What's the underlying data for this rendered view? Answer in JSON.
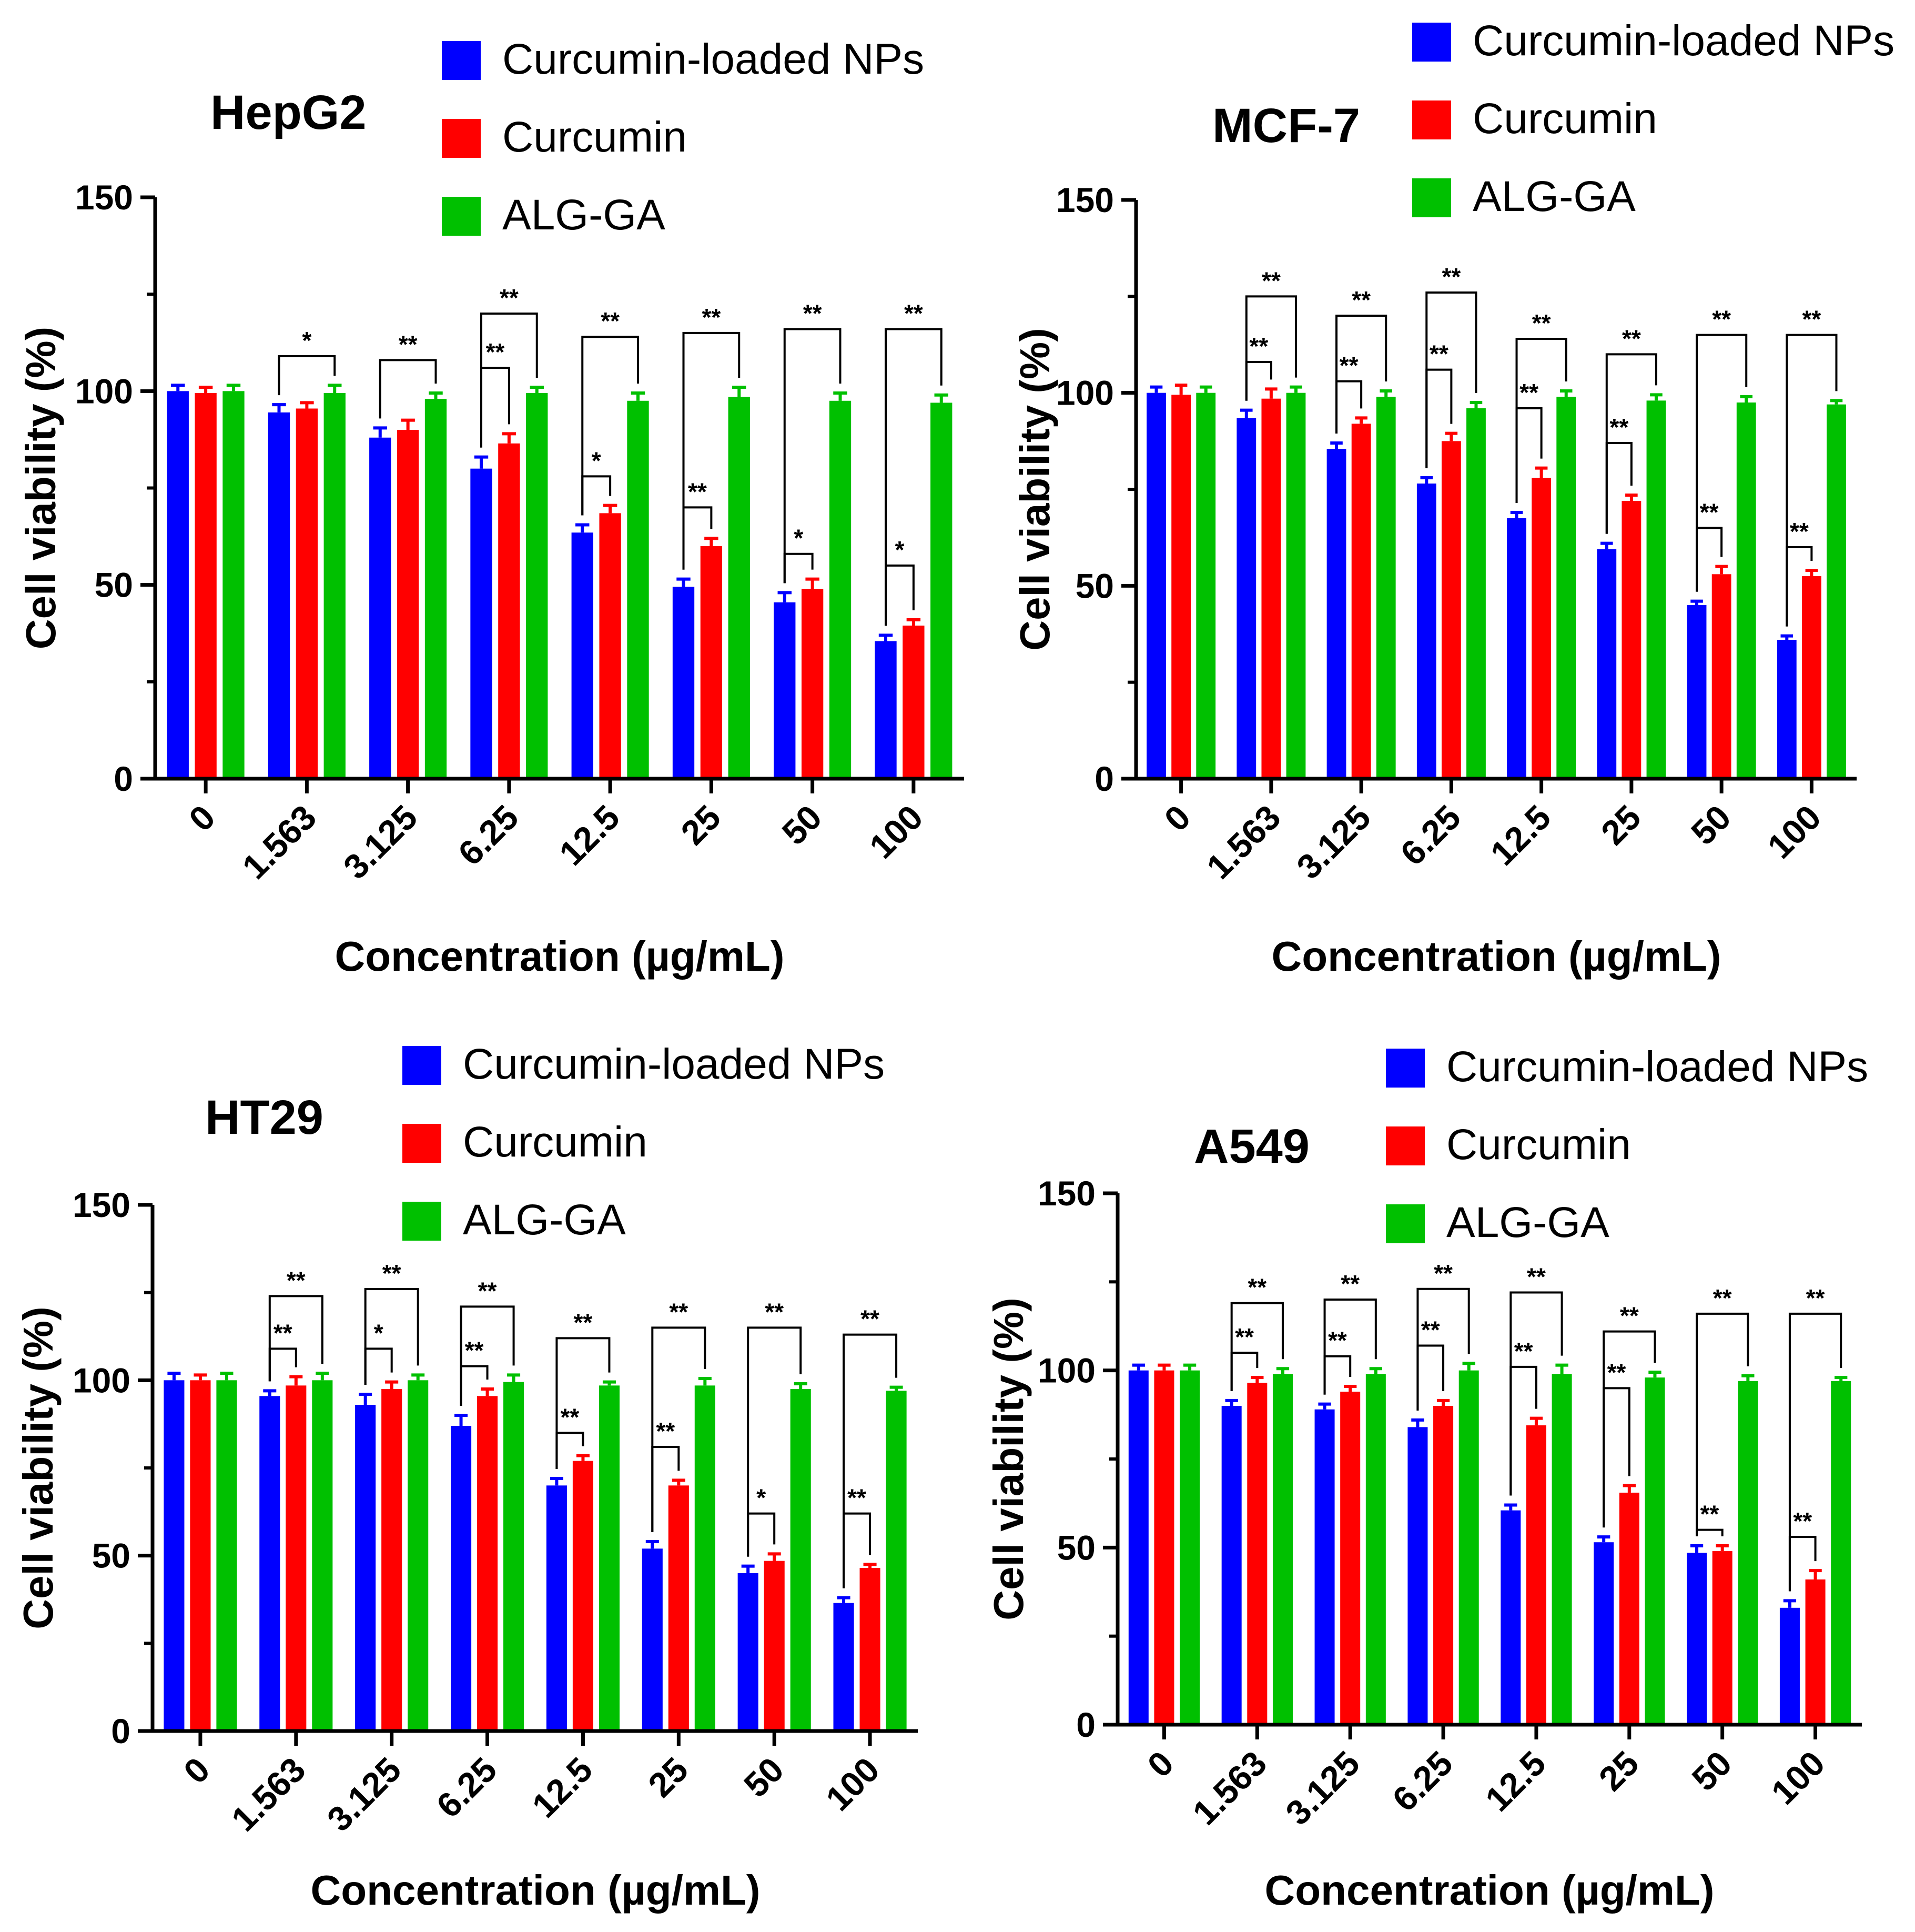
{
  "colors": {
    "nps": "#0000FF",
    "curcumin": "#FF0000",
    "alg": "#00C000",
    "axis": "#000000"
  },
  "chart_data": [
    {
      "type": "bar",
      "title": "HepG2",
      "xlabel": "Concentration (µg/mL)",
      "ylabel": "Cell viability (%)",
      "ylim": [
        0,
        150
      ],
      "yticks": [
        "0",
        "50",
        "100",
        "150"
      ],
      "categories": [
        "0",
        "1.563",
        "3.125",
        "6.25",
        "12.5",
        "25",
        "50",
        "100"
      ],
      "legend": [
        "Curcumin-loaded NPs",
        "Curcumin",
        "ALG-GA"
      ],
      "series": [
        {
          "name": "Curcumin-loaded NPs",
          "values": [
            100,
            94.5,
            88,
            80,
            63.5,
            49.5,
            45.5,
            35.5
          ],
          "errors": [
            1.5,
            2,
            2.5,
            3,
            2,
            2,
            2.5,
            1.5
          ]
        },
        {
          "name": "Curcumin",
          "values": [
            99.5,
            95.5,
            90,
            86.5,
            68.5,
            60,
            49,
            39.5
          ],
          "errors": [
            1.5,
            1.5,
            2.5,
            2.5,
            2,
            2,
            2.5,
            1.5
          ]
        },
        {
          "name": "ALG-GA",
          "values": [
            100,
            99.5,
            98,
            99.5,
            97.5,
            98.5,
            97.5,
            97
          ],
          "errors": [
            1.5,
            2,
            1.5,
            1.5,
            2,
            2.5,
            2,
            2
          ]
        }
      ],
      "significance": [
        {
          "cat": 1,
          "from": 0,
          "to": 2,
          "label": "*",
          "level": 109
        },
        {
          "cat": 2,
          "from": 0,
          "to": 2,
          "label": "**",
          "level": 108
        },
        {
          "cat": 3,
          "from": 0,
          "to": 1,
          "label": "**",
          "level": 106
        },
        {
          "cat": 3,
          "from": 0,
          "to": 2,
          "label": "**",
          "level": 120
        },
        {
          "cat": 4,
          "from": 0,
          "to": 1,
          "label": "*",
          "level": 78
        },
        {
          "cat": 4,
          "from": 0,
          "to": 2,
          "label": "**",
          "level": 114
        },
        {
          "cat": 5,
          "from": 0,
          "to": 1,
          "label": "**",
          "level": 70
        },
        {
          "cat": 5,
          "from": 0,
          "to": 2,
          "label": "**",
          "level": 115
        },
        {
          "cat": 6,
          "from": 0,
          "to": 1,
          "label": "*",
          "level": 58
        },
        {
          "cat": 6,
          "from": 0,
          "to": 2,
          "label": "**",
          "level": 116
        },
        {
          "cat": 7,
          "from": 0,
          "to": 1,
          "label": "*",
          "level": 55
        },
        {
          "cat": 7,
          "from": 0,
          "to": 2,
          "label": "**",
          "level": 116
        }
      ]
    },
    {
      "type": "bar",
      "title": "MCF-7",
      "xlabel": "Concentration (µg/mL)",
      "ylabel": "Cell viability (%)",
      "ylim": [
        0,
        150
      ],
      "yticks": [
        "0",
        "50",
        "100",
        "150"
      ],
      "categories": [
        "0",
        "1.563",
        "3.125",
        "6.25",
        "12.5",
        "25",
        "50",
        "100"
      ],
      "legend": [
        "Curcumin-loaded NPs",
        "Curcumin",
        "ALG-GA"
      ],
      "series": [
        {
          "name": "Curcumin-loaded NPs",
          "values": [
            100,
            93.5,
            85.5,
            76.5,
            67.5,
            59.5,
            45,
            36
          ],
          "errors": [
            1.5,
            2,
            1.5,
            1.5,
            1.5,
            1.5,
            1,
            1
          ]
        },
        {
          "name": "Curcumin",
          "values": [
            99.5,
            98.5,
            92,
            87.5,
            78,
            72,
            53,
            52.5
          ],
          "errors": [
            2.5,
            2.5,
            1.5,
            2,
            2.5,
            1.5,
            2,
            1.5
          ]
        },
        {
          "name": "ALG-GA",
          "values": [
            100,
            100,
            99,
            96,
            99,
            98,
            97.5,
            97
          ],
          "errors": [
            1.5,
            1.5,
            1.5,
            1.5,
            1.5,
            1.5,
            1.5,
            1
          ]
        }
      ],
      "significance": [
        {
          "cat": 1,
          "from": 0,
          "to": 1,
          "label": "**",
          "level": 108
        },
        {
          "cat": 1,
          "from": 0,
          "to": 2,
          "label": "**",
          "level": 125
        },
        {
          "cat": 2,
          "from": 0,
          "to": 1,
          "label": "**",
          "level": 103
        },
        {
          "cat": 2,
          "from": 0,
          "to": 2,
          "label": "**",
          "level": 120
        },
        {
          "cat": 3,
          "from": 0,
          "to": 1,
          "label": "**",
          "level": 106
        },
        {
          "cat": 3,
          "from": 0,
          "to": 2,
          "label": "**",
          "level": 126
        },
        {
          "cat": 4,
          "from": 0,
          "to": 1,
          "label": "**",
          "level": 96
        },
        {
          "cat": 4,
          "from": 0,
          "to": 2,
          "label": "**",
          "level": 114
        },
        {
          "cat": 5,
          "from": 0,
          "to": 1,
          "label": "**",
          "level": 87
        },
        {
          "cat": 5,
          "from": 0,
          "to": 2,
          "label": "**",
          "level": 110
        },
        {
          "cat": 6,
          "from": 0,
          "to": 1,
          "label": "**",
          "level": 65
        },
        {
          "cat": 6,
          "from": 0,
          "to": 2,
          "label": "**",
          "level": 115
        },
        {
          "cat": 7,
          "from": 0,
          "to": 1,
          "label": "**",
          "level": 60
        },
        {
          "cat": 7,
          "from": 0,
          "to": 2,
          "label": "**",
          "level": 115
        }
      ]
    },
    {
      "type": "bar",
      "title": "HT29",
      "xlabel": "Concentration (µg/mL)",
      "ylabel": "Cell viability (%)",
      "ylim": [
        0,
        150
      ],
      "yticks": [
        "0",
        "50",
        "100",
        "150"
      ],
      "categories": [
        "0",
        "1.563",
        "3.125",
        "6.25",
        "12.5",
        "25",
        "50",
        "100"
      ],
      "legend": [
        "Curcumin-loaded NPs",
        "Curcumin",
        "ALG-GA"
      ],
      "series": [
        {
          "name": "Curcumin-loaded NPs",
          "values": [
            100,
            95.5,
            93,
            87,
            70,
            52,
            45,
            36.5
          ],
          "errors": [
            2,
            1.5,
            3,
            3,
            2,
            2,
            2,
            1.5
          ]
        },
        {
          "name": "Curcumin",
          "values": [
            100,
            98.5,
            97.5,
            95.5,
            77,
            70,
            48.5,
            46.5
          ],
          "errors": [
            1.5,
            2.5,
            2,
            2,
            1.5,
            1.5,
            2,
            1
          ]
        },
        {
          "name": "ALG-GA",
          "values": [
            100,
            100,
            100,
            99.5,
            98.5,
            98.5,
            97.5,
            97
          ],
          "errors": [
            2,
            2,
            1.5,
            2,
            1,
            2,
            1.5,
            1
          ]
        }
      ],
      "significance": [
        {
          "cat": 1,
          "from": 0,
          "to": 1,
          "label": "**",
          "level": 109
        },
        {
          "cat": 1,
          "from": 0,
          "to": 2,
          "label": "**",
          "level": 124
        },
        {
          "cat": 2,
          "from": 0,
          "to": 1,
          "label": "*",
          "level": 109
        },
        {
          "cat": 2,
          "from": 0,
          "to": 2,
          "label": "**",
          "level": 126
        },
        {
          "cat": 3,
          "from": 0,
          "to": 1,
          "label": "**",
          "level": 104
        },
        {
          "cat": 3,
          "from": 0,
          "to": 2,
          "label": "**",
          "level": 121
        },
        {
          "cat": 4,
          "from": 0,
          "to": 1,
          "label": "**",
          "level": 85
        },
        {
          "cat": 4,
          "from": 0,
          "to": 2,
          "label": "**",
          "level": 112
        },
        {
          "cat": 5,
          "from": 0,
          "to": 1,
          "label": "**",
          "level": 81
        },
        {
          "cat": 5,
          "from": 0,
          "to": 2,
          "label": "**",
          "level": 115
        },
        {
          "cat": 6,
          "from": 0,
          "to": 1,
          "label": "*",
          "level": 62
        },
        {
          "cat": 6,
          "from": 0,
          "to": 2,
          "label": "**",
          "level": 115
        },
        {
          "cat": 7,
          "from": 0,
          "to": 1,
          "label": "**",
          "level": 62
        },
        {
          "cat": 7,
          "from": 0,
          "to": 2,
          "label": "**",
          "level": 113
        }
      ]
    },
    {
      "type": "bar",
      "title": "A549",
      "xlabel": "Concentration (µg/mL)",
      "ylabel": "Cell viability (%)",
      "ylim": [
        0,
        150
      ],
      "yticks": [
        "0",
        "50",
        "100",
        "150"
      ],
      "categories": [
        "0",
        "1.563",
        "3.125",
        "6.25",
        "12.5",
        "25",
        "50",
        "100"
      ],
      "legend": [
        "Curcumin-loaded NPs",
        "Curcumin",
        "ALG-GA"
      ],
      "series": [
        {
          "name": "Curcumin-loaded NPs",
          "values": [
            100,
            90,
            89,
            84,
            60.5,
            51.5,
            48.5,
            33
          ],
          "errors": [
            1.5,
            1.5,
            1.5,
            2,
            1.5,
            1.5,
            2,
            2
          ]
        },
        {
          "name": "Curcumin",
          "values": [
            100,
            96.5,
            94,
            90,
            84.5,
            65.5,
            49,
            41
          ],
          "errors": [
            1.5,
            1.5,
            1.5,
            1.5,
            2,
            2,
            1.5,
            2.5
          ]
        },
        {
          "name": "ALG-GA",
          "values": [
            100,
            99,
            99,
            100,
            99,
            98,
            97,
            97
          ],
          "errors": [
            1.5,
            1.5,
            1.5,
            2,
            2.5,
            1.5,
            1.5,
            1
          ]
        }
      ],
      "significance": [
        {
          "cat": 1,
          "from": 0,
          "to": 1,
          "label": "**",
          "level": 105
        },
        {
          "cat": 1,
          "from": 0,
          "to": 2,
          "label": "**",
          "level": 119
        },
        {
          "cat": 2,
          "from": 0,
          "to": 1,
          "label": "**",
          "level": 104
        },
        {
          "cat": 2,
          "from": 0,
          "to": 2,
          "label": "**",
          "level": 120
        },
        {
          "cat": 3,
          "from": 0,
          "to": 1,
          "label": "**",
          "level": 107
        },
        {
          "cat": 3,
          "from": 0,
          "to": 2,
          "label": "**",
          "level": 123
        },
        {
          "cat": 4,
          "from": 0,
          "to": 1,
          "label": "**",
          "level": 101
        },
        {
          "cat": 4,
          "from": 0,
          "to": 2,
          "label": "**",
          "level": 122
        },
        {
          "cat": 5,
          "from": 0,
          "to": 1,
          "label": "**",
          "level": 95
        },
        {
          "cat": 5,
          "from": 0,
          "to": 2,
          "label": "**",
          "level": 111
        },
        {
          "cat": 6,
          "from": 0,
          "to": 1,
          "label": "**",
          "level": 55
        },
        {
          "cat": 6,
          "from": 0,
          "to": 2,
          "label": "**",
          "level": 116
        },
        {
          "cat": 7,
          "from": 0,
          "to": 1,
          "label": "**",
          "level": 53
        },
        {
          "cat": 7,
          "from": 0,
          "to": 2,
          "label": "**",
          "level": 116
        }
      ]
    }
  ]
}
